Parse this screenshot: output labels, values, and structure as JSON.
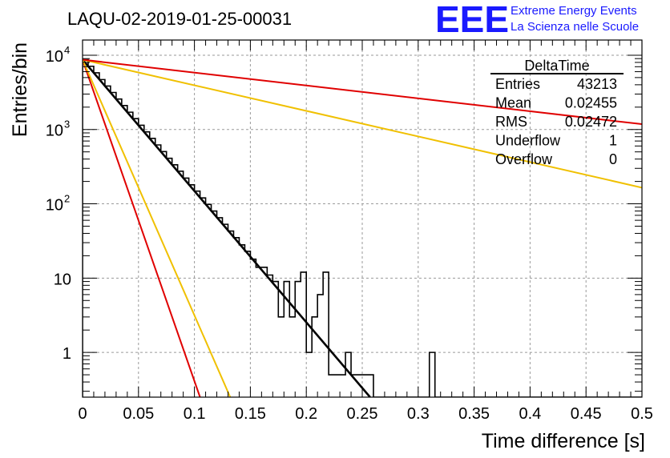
{
  "chart_data": {
    "type": "histogram",
    "title": "LAQU-02-2019-01-25-00031",
    "xlabel": "Time difference [s]",
    "ylabel": "Entries/bin",
    "xlim": [
      0,
      0.5
    ],
    "ylim": [
      0.25,
      16000
    ],
    "yscale": "log",
    "grid": true,
    "x_ticks": [
      "0",
      "0.05",
      "0.1",
      "0.15",
      "0.2",
      "0.25",
      "0.3",
      "0.35",
      "0.4",
      "0.45",
      "0.5"
    ],
    "y_ticks": [
      {
        "value": 1,
        "label": "1",
        "exp": ""
      },
      {
        "value": 10,
        "label": "10",
        "exp": ""
      },
      {
        "value": 100,
        "label": "10",
        "exp": "2"
      },
      {
        "value": 1000,
        "label": "10",
        "exp": "3"
      },
      {
        "value": 10000,
        "label": "10",
        "exp": "4"
      }
    ],
    "bin_width": 0.005,
    "histogram": {
      "color": "#000000",
      "counts": [
        8700,
        7100,
        5800,
        4700,
        3850,
        3150,
        2570,
        2100,
        1710,
        1400,
        1140,
        930,
        760,
        620,
        505,
        410,
        335,
        275,
        222,
        180,
        148,
        120,
        98,
        80,
        65,
        53,
        43,
        35,
        28,
        23,
        18,
        14,
        14,
        11,
        9,
        3,
        9,
        3,
        9,
        12,
        1,
        3,
        6,
        12,
        0.5,
        0.5,
        0.5,
        1,
        0.5,
        0.5,
        0.5,
        0.5,
        0,
        0,
        0,
        0,
        0,
        0,
        0,
        0,
        0,
        0,
        1,
        0,
        0,
        0,
        0,
        0,
        0,
        0,
        0,
        0,
        0,
        0,
        0,
        0,
        0,
        0,
        0,
        0,
        0,
        0,
        0,
        0,
        0,
        0,
        0,
        0,
        0,
        0,
        0,
        0,
        0,
        0,
        0,
        0,
        0,
        0,
        0,
        0
      ]
    },
    "fits": [
      {
        "color": "#000000",
        "x": [
          0,
          0.257
        ],
        "y": [
          8700,
          0.25
        ]
      },
      {
        "color": "#e00000",
        "x": [
          0,
          0.105
        ],
        "y": [
          8700,
          0.25
        ]
      },
      {
        "color": "#f0c000",
        "x": [
          0,
          0.132
        ],
        "y": [
          8700,
          0.25
        ]
      },
      {
        "color": "#f0c000",
        "x": [
          0,
          0.5
        ],
        "y": [
          8700,
          165
        ]
      },
      {
        "color": "#e00000",
        "x": [
          0,
          0.5
        ],
        "y": [
          8700,
          1180
        ]
      }
    ],
    "stats_box": {
      "name": "DeltaTime",
      "rows": [
        {
          "label": "Entries",
          "value": "43213"
        },
        {
          "label": "Mean",
          "value": "0.02455"
        },
        {
          "label": "RMS",
          "value": "0.02472"
        },
        {
          "label": "Underflow",
          "value": "1"
        },
        {
          "label": "Overflow",
          "value": "0"
        }
      ]
    }
  },
  "logo": {
    "mark": "EEE",
    "line1": "Extreme Energy Events",
    "line2": "La Scienza nelle Scuole"
  }
}
